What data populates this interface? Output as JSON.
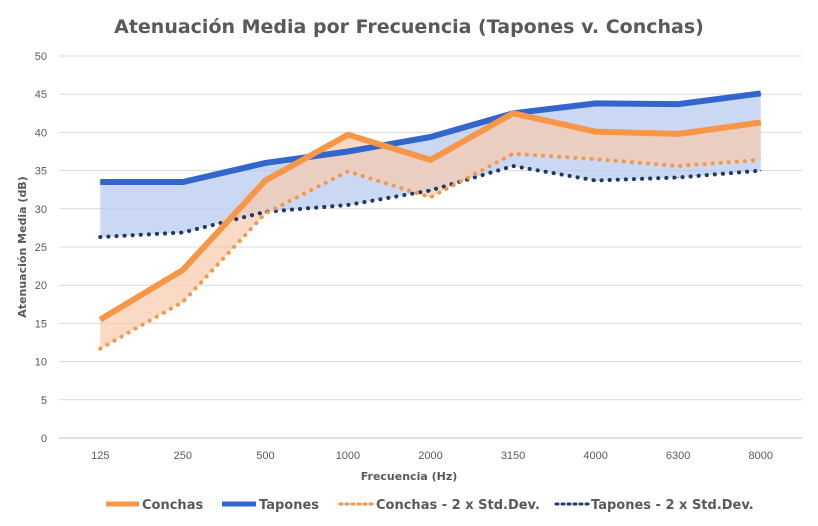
{
  "chart_data": {
    "type": "line",
    "title": "Atenuación Media por Frecuencia (Tapones v. Conchas)",
    "xlabel": "Frecuencia (Hz)",
    "ylabel": "Atenuación Media (dB)",
    "ylim": [
      0,
      50
    ],
    "ytick_step": 5,
    "grid": true,
    "legend_position": "bottom",
    "categories": [
      "125",
      "250",
      "500",
      "1000",
      "2000",
      "3150",
      "4000",
      "6300",
      "8000"
    ],
    "series": [
      {
        "name": "Conchas",
        "style": "solid",
        "color": "#F79646",
        "values": [
          15.5,
          22,
          33.7,
          39.7,
          36.4,
          42.5,
          40.1,
          39.8,
          41.3
        ]
      },
      {
        "name": "Tapones",
        "style": "solid",
        "color": "#3366CC",
        "values": [
          33.5,
          33.5,
          36,
          37.5,
          39.4,
          42.5,
          43.8,
          43.7,
          45.1
        ]
      },
      {
        "name": "Conchas - 2 x Std.Dev.",
        "style": "dotted",
        "color": "#F79646",
        "values": [
          11.7,
          17.8,
          29.4,
          34.9,
          31.5,
          37.2,
          36.5,
          35.6,
          36.4
        ]
      },
      {
        "name": "Tapones - 2 x Std.Dev.",
        "style": "dotted",
        "color": "#1F3864",
        "values": [
          26.3,
          26.9,
          29.6,
          30.5,
          32.4,
          35.6,
          33.7,
          34.1,
          35.0
        ]
      }
    ],
    "bands": [
      {
        "upper": "Tapones",
        "lower": "Tapones - 2 x Std.Dev.",
        "color": "#B4C7EE"
      },
      {
        "upper": "Conchas",
        "lower": "Conchas - 2 x Std.Dev.",
        "color": "#F8CBAD"
      }
    ]
  }
}
